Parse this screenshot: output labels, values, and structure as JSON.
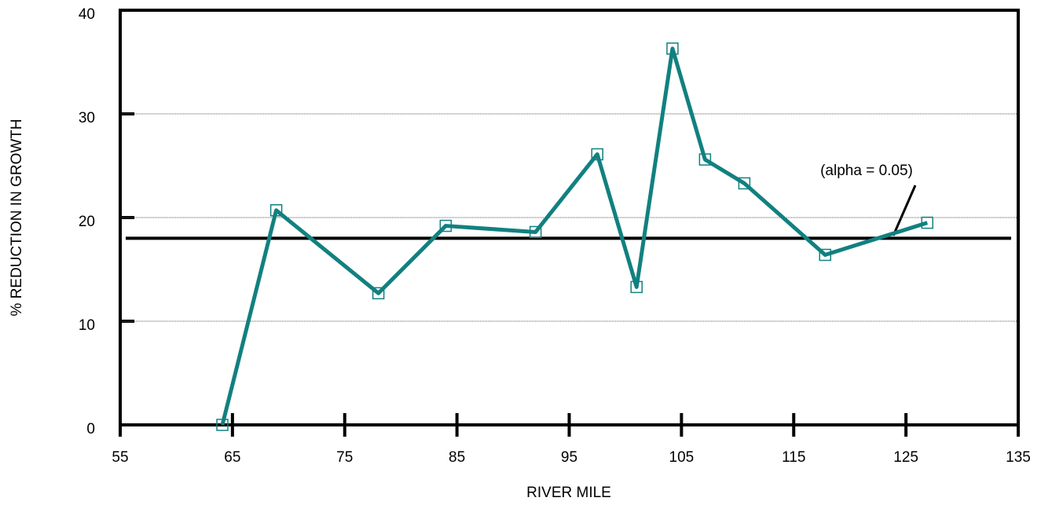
{
  "chart_data": {
    "type": "line",
    "x_label": "RIVER MILE",
    "y_label": "% REDUCTION IN GROWTH",
    "annotation": "(alpha = 0.05)",
    "threshold": 18,
    "series": [
      {
        "name": "% reduction",
        "color": "#128080",
        "x": [
          64.1,
          68.9,
          78,
          84,
          92,
          97.5,
          101,
          104.2,
          107.1,
          110.6,
          117.8,
          126.9
        ],
        "values": [
          0,
          20.7,
          12.7,
          19.2,
          18.6,
          26.1,
          13.3,
          36.3,
          25.6,
          23.3,
          16.4,
          19.5
        ]
      }
    ],
    "xlim": [
      55,
      135
    ],
    "xticks": [
      55,
      65,
      75,
      85,
      95,
      105,
      115,
      125,
      135
    ],
    "ylim": [
      0,
      40
    ],
    "yticks": [
      0,
      10,
      20,
      30,
      40
    ],
    "grid": true
  }
}
